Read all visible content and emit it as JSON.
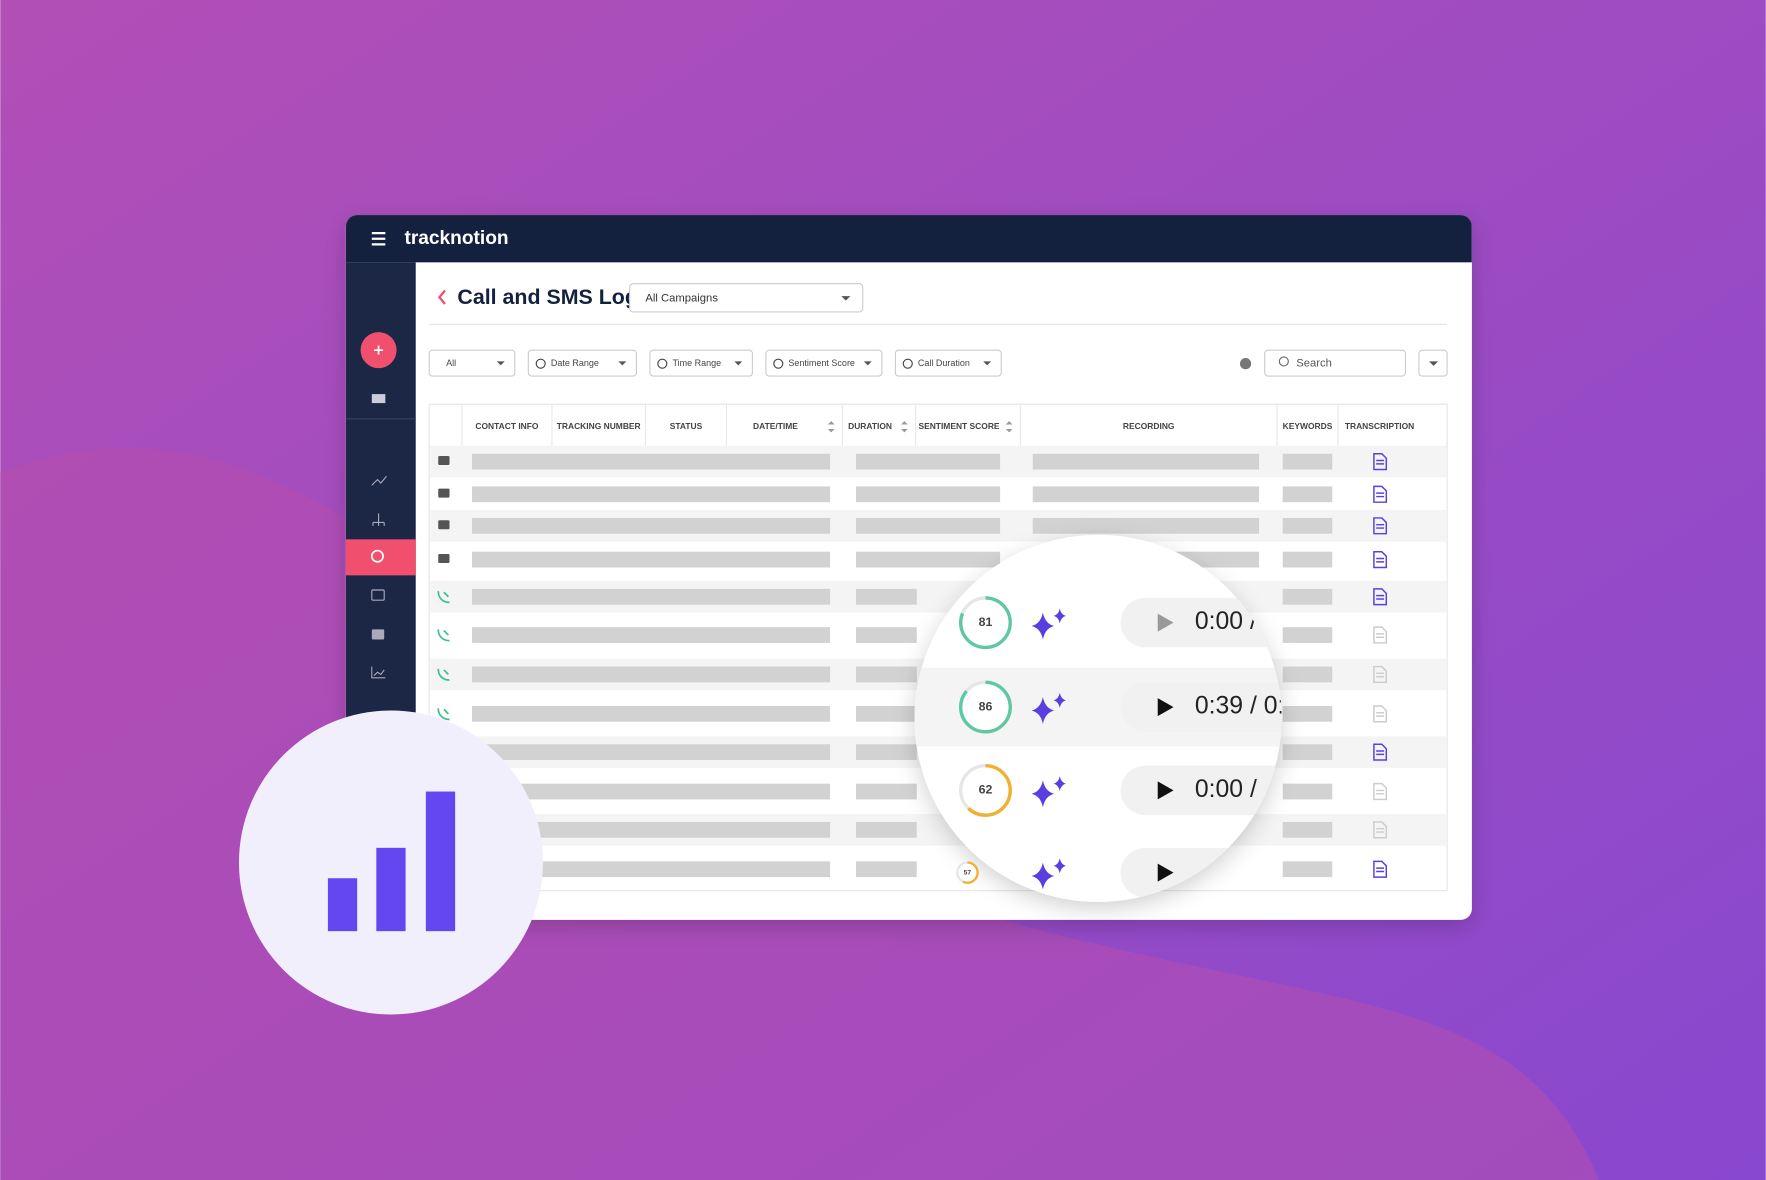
{
  "app": {
    "brand": "tracknotion",
    "title": "Call and SMS Log",
    "campaign_select": "All Campaigns",
    "filters": [
      "All",
      "Date Range",
      "Time Range",
      "Sentiment Score",
      "Call Duration"
    ],
    "search_placeholder": "Search",
    "table": {
      "columns": [
        "CONTACT INFO",
        "TRACKING NUMBER",
        "STATUS",
        "DATE/TIME",
        "DURATION",
        "SENTIMENT SCORE",
        "RECORDING",
        "KEYWORDS",
        "TRANSCRIPTION"
      ]
    },
    "magnifier": {
      "rows": [
        {
          "score": 81,
          "time": "0:00 /"
        },
        {
          "score": 86,
          "time": "0:39 / 0:"
        },
        {
          "score": 62,
          "time": "0:00 /"
        },
        {
          "score": 57
        }
      ]
    }
  }
}
